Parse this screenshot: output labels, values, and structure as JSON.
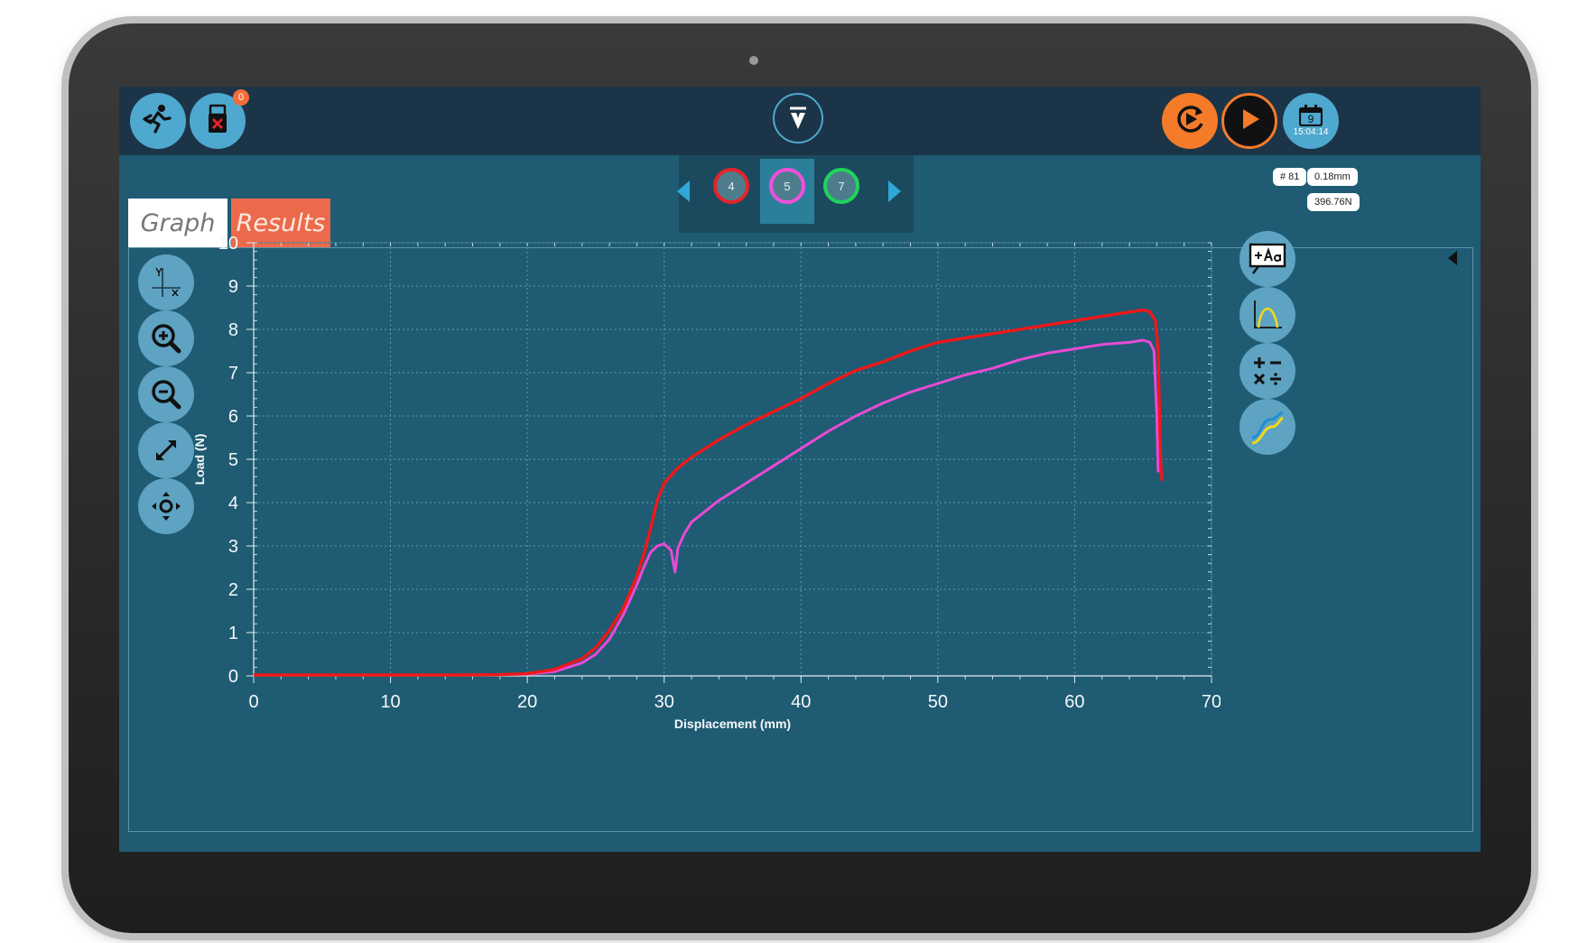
{
  "header": {
    "usb_badge": "0",
    "date_day": "9",
    "time": "15:04:14"
  },
  "tabs": [
    {
      "label": "Graph"
    },
    {
      "label": "Results"
    }
  ],
  "specimens": [
    {
      "label": "4",
      "color": "#e8232a"
    },
    {
      "label": "5",
      "color": "#f04fdc"
    },
    {
      "label": "7",
      "color": "#1fd45a"
    }
  ],
  "readouts": {
    "count": "# 81",
    "displacement": "0.18mm",
    "load": "396.76N"
  },
  "icons": {
    "left_toolbar": [
      "exit-icon",
      "usb-icon"
    ],
    "right_toolbar": [
      "replay-icon",
      "play-icon",
      "calendar-icon"
    ],
    "graph_tools_left": [
      "axes-icon",
      "zoom-in-icon",
      "zoom-out-icon",
      "expand-icon",
      "pan-icon"
    ],
    "graph_tools_right": [
      "annotate-icon",
      "peak-icon",
      "calculator-icon",
      "curve-fit-icon"
    ]
  },
  "chart_data": {
    "type": "line",
    "xlabel": "Displacement (mm)",
    "ylabel": "Load (N)",
    "xlim": [
      0,
      70
    ],
    "ylim": [
      0,
      10
    ],
    "xticks": [
      0,
      10,
      20,
      30,
      40,
      50,
      60,
      70
    ],
    "yticks": [
      0,
      1,
      2,
      3,
      4,
      5,
      6,
      7,
      8,
      9,
      10
    ],
    "grid": true,
    "series": [
      {
        "color": "#f01818",
        "x": [
          0,
          5,
          10,
          15,
          18,
          20,
          22,
          24,
          25,
          26,
          27,
          28,
          28.5,
          29,
          29.5,
          30,
          31,
          32,
          34,
          36,
          38,
          40,
          42,
          44,
          46,
          48,
          50,
          52,
          54,
          56,
          58,
          60,
          62,
          64,
          65,
          65.5,
          65.9,
          66.1,
          66.2,
          66.3,
          66.4
        ],
        "y": [
          0.02,
          0.02,
          0.02,
          0.02,
          0.03,
          0.05,
          0.15,
          0.4,
          0.65,
          1.05,
          1.55,
          2.3,
          2.8,
          3.4,
          4.05,
          4.45,
          4.8,
          5.05,
          5.45,
          5.8,
          6.1,
          6.4,
          6.75,
          7.05,
          7.25,
          7.5,
          7.7,
          7.8,
          7.9,
          8.0,
          8.1,
          8.2,
          8.3,
          8.4,
          8.45,
          8.4,
          8.2,
          7.5,
          6.0,
          4.8,
          4.5
        ]
      },
      {
        "color": "#e84ad6",
        "x": [
          0,
          5,
          10,
          15,
          18,
          20,
          22,
          24,
          25,
          26,
          27,
          28,
          28.5,
          29,
          29.5,
          30,
          30.5,
          30.8,
          31,
          31.5,
          32,
          34,
          36,
          38,
          40,
          42,
          44,
          46,
          48,
          50,
          52,
          54,
          56,
          58,
          60,
          62,
          64,
          65,
          65.5,
          65.8,
          66.0,
          66.1
        ],
        "y": [
          0.02,
          0.02,
          0.02,
          0.02,
          0.03,
          0.04,
          0.1,
          0.3,
          0.5,
          0.85,
          1.4,
          2.1,
          2.5,
          2.85,
          3.0,
          3.05,
          2.9,
          2.4,
          2.95,
          3.3,
          3.55,
          4.05,
          4.45,
          4.85,
          5.25,
          5.65,
          6.0,
          6.3,
          6.55,
          6.75,
          6.95,
          7.1,
          7.3,
          7.45,
          7.55,
          7.65,
          7.7,
          7.75,
          7.7,
          7.5,
          6.0,
          4.7
        ]
      }
    ]
  }
}
